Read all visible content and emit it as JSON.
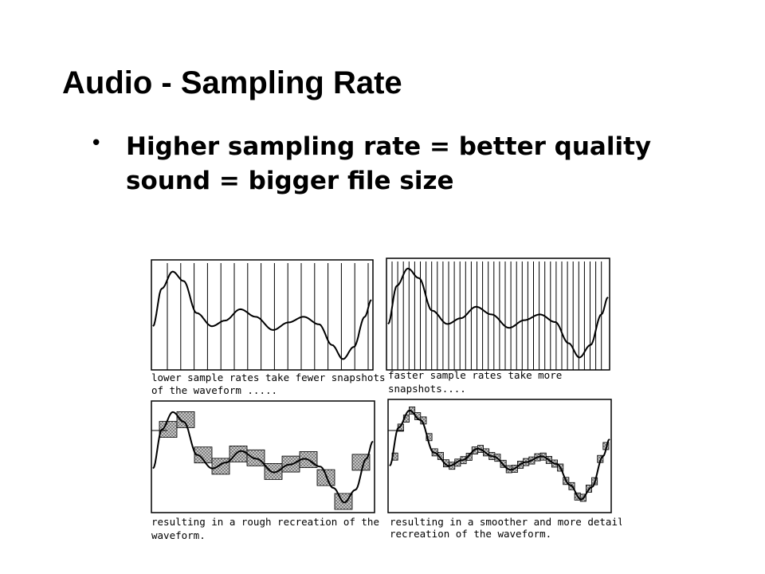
{
  "slide": {
    "title": "Audio - Sampling Rate",
    "bullet": "Higher sampling rate = better quality sound = bigger file size"
  },
  "figure": {
    "panels": [
      {
        "id": "low-rate-samples",
        "caption_lines": [
          "lower sample rates take fewer snapshots",
          "of the waveform ....."
        ]
      },
      {
        "id": "high-rate-samples",
        "caption_lines": [
          "faster sample rates take more",
          "snapshots...."
        ]
      },
      {
        "id": "low-rate-recreation",
        "caption_lines": [
          "resulting in a rough recreation of the",
          "waveform."
        ]
      },
      {
        "id": "high-rate-recreation",
        "caption_lines": [
          "resulting in a smoother and more detailed",
          "recreation of the waveform."
        ]
      }
    ]
  },
  "colors": {
    "text": "#000000",
    "stair_fill": "#b5b5b5",
    "background": "#ffffff"
  }
}
